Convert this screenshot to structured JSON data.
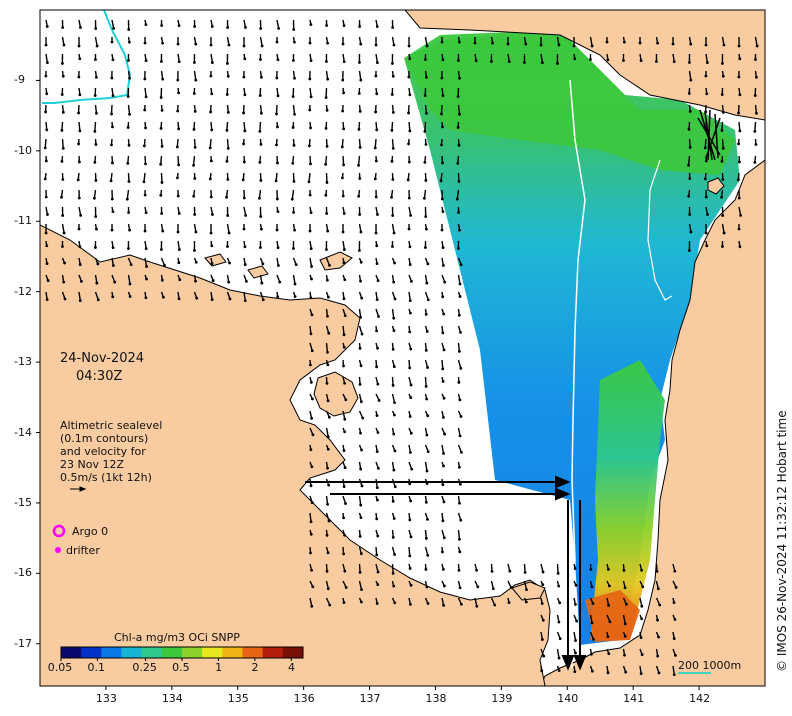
{
  "map": {
    "lon_range": [
      132.0,
      143.0
    ],
    "lat_range": [
      -17.6,
      -8.0
    ],
    "lon_ticks": [
      133,
      134,
      135,
      136,
      137,
      138,
      139,
      140,
      141,
      142
    ],
    "lat_ticks": [
      -9,
      -10,
      -11,
      -12,
      -13,
      -14,
      -15,
      -16,
      -17
    ],
    "lon_tick_labels": [
      "133",
      "134",
      "135",
      "136",
      "137",
      "138",
      "139",
      "140",
      "141",
      "142"
    ],
    "lat_tick_labels": [
      "-9",
      "-10",
      "-11",
      "-12",
      "-13",
      "-14",
      "-15",
      "-16",
      "-17"
    ],
    "colors": {
      "land": "#f8cba0",
      "sea_nodata": "#ffffff",
      "coastline": "#000000",
      "argo_marker": "#ff00ff",
      "drifter_marker": "#ff00ff",
      "contour": "#ffffff",
      "scale_bar": "#40d0c0",
      "cyan_line": "#20d0d8"
    },
    "date_line1": "24-Nov-2024",
    "date_line2": "04:30Z",
    "sealevel_note": [
      "Altimetric sealevel",
      "(0.1m contours)",
      "and velocity for",
      "23 Nov 12Z",
      "0.5m/s (1kt 12h)"
    ],
    "argo_label": "Argo 0",
    "drifter_label": "drifter",
    "colorbar": {
      "title": "Chl-a mg/m3 OCi SNPP",
      "tick_labels": [
        "0.05",
        "0.1",
        "0.25",
        "0.5",
        "1",
        "2",
        "4"
      ],
      "tick_values": [
        0.05,
        0.1,
        0.25,
        0.5,
        1,
        2,
        4
      ],
      "range": [
        0.05,
        5
      ],
      "scale": "log",
      "colors": [
        "#0a0a6e",
        "#0032c8",
        "#0a78e6",
        "#14b4d2",
        "#2dc88c",
        "#3cc83c",
        "#8cd228",
        "#e6e61e",
        "#f0b414",
        "#e66414",
        "#b41e0a",
        "#7a1005"
      ]
    },
    "scale_label": "200  1000m",
    "credit": "© IMOS 26-Nov-2024 11:32:12 Hobart time"
  }
}
